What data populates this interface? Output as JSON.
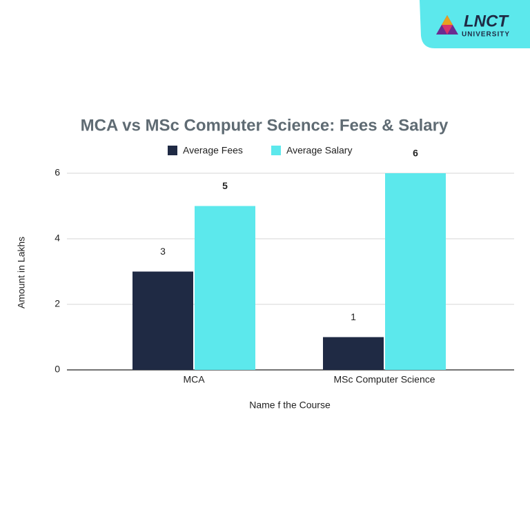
{
  "logo": {
    "name": "LNCT",
    "subtitle": "UNIVERSITY"
  },
  "chart_data": {
    "type": "bar",
    "title": "MCA vs MSc Computer Science: Fees & Salary",
    "categories": [
      "MCA",
      "MSc Computer Science"
    ],
    "series": [
      {
        "name": "Average Fees",
        "color": "#1f2a44",
        "values": [
          3,
          1
        ]
      },
      {
        "name": "Average Salary",
        "color": "#5ce8ec",
        "values": [
          5,
          6
        ]
      }
    ],
    "x_label": "Name f the Course",
    "y_label": "Amount in Lakhs",
    "ylim": [
      0,
      6
    ],
    "yticks": [
      0,
      2,
      4,
      6
    ],
    "grid": true,
    "legend": "top"
  }
}
